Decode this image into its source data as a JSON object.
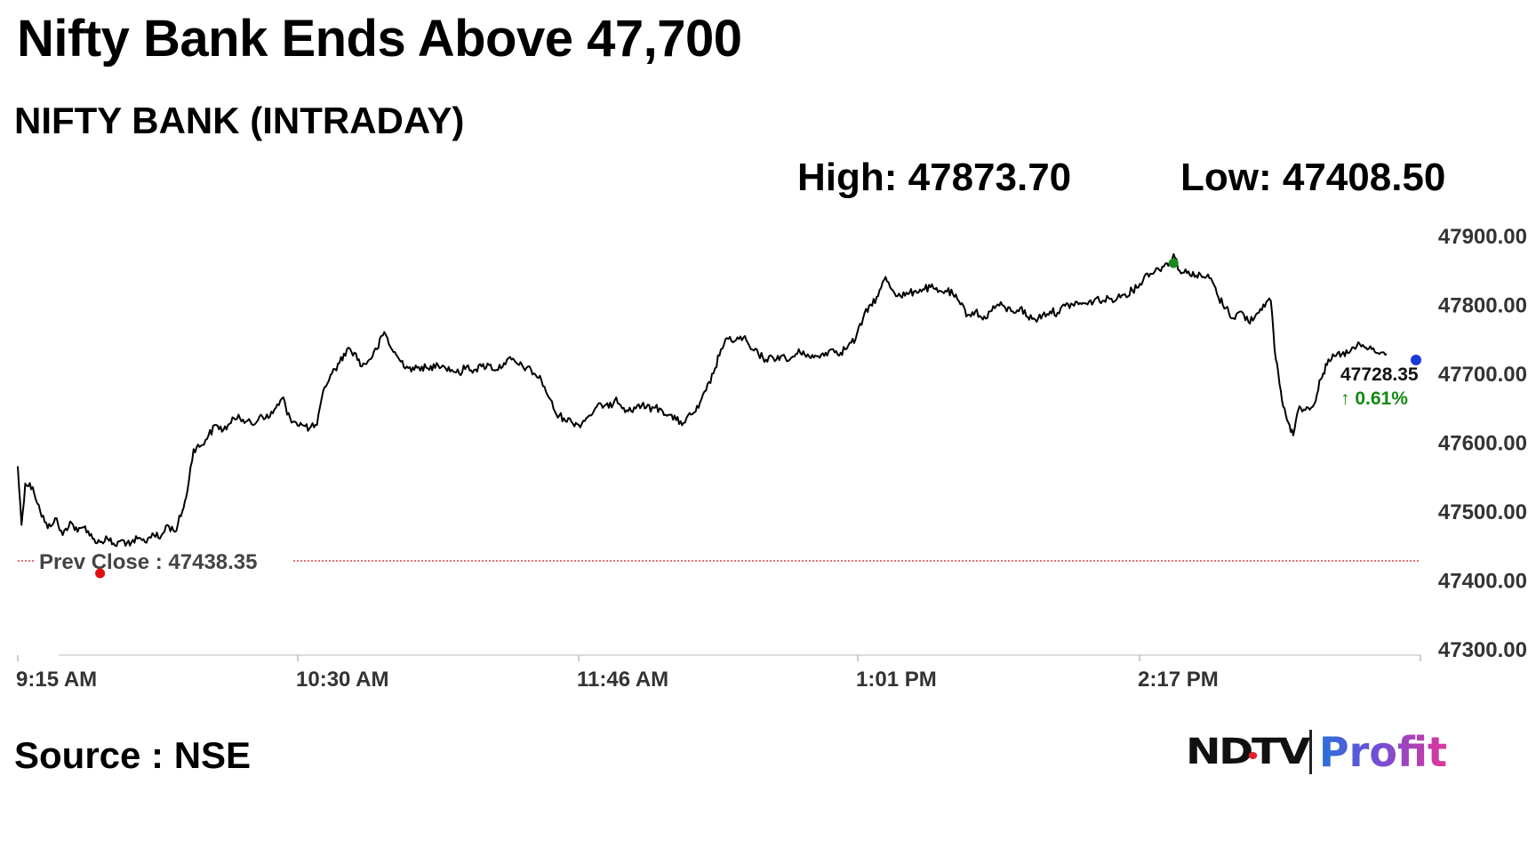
{
  "headline": "Nifty Bank Ends Above 47,700",
  "subtitle": "NIFTY BANK (INTRADAY)",
  "stats": {
    "high": "High: 47873.70",
    "low": "Low: 47408.50"
  },
  "source": "Source : NSE",
  "logo": {
    "ndtv": "NDTV",
    "profit": "Profit"
  },
  "colors": {
    "line": "#000000",
    "prev_close": "#cc2222",
    "high_marker": "#1a8a1a",
    "low_marker": "#e01010",
    "last_marker": "#1a3ad6",
    "change_up": "#128a12"
  },
  "chart_data": {
    "type": "line",
    "title": "NIFTY BANK (INTRADAY)",
    "xlabel": "",
    "ylabel": "",
    "x_ticks": [
      "9:15 AM",
      "10:30 AM",
      "11:46 AM",
      "1:01 PM",
      "2:17 PM"
    ],
    "x_range": [
      "9:15",
      "15:30"
    ],
    "y_ticks": [
      "47300.00",
      "47400.00",
      "47500.00",
      "47600.00",
      "47700.00",
      "47800.00",
      "47900.00"
    ],
    "ylim": [
      47300,
      47900
    ],
    "grid": false,
    "prev_close": {
      "label": "Prev Close : 47438.35",
      "value": 47438.35
    },
    "last": {
      "value": "47728.35",
      "change": "↑ 0.61%"
    },
    "high": {
      "time": "14:24",
      "value": 47873.7
    },
    "low": {
      "time": "9:37",
      "value": 47408.5
    },
    "series": [
      {
        "points": [
          [
            "9:15",
            47565
          ],
          [
            "9:16",
            47480
          ],
          [
            "9:17",
            47540
          ],
          [
            "9:19",
            47535
          ],
          [
            "9:21",
            47500
          ],
          [
            "9:23",
            47475
          ],
          [
            "9:25",
            47490
          ],
          [
            "9:27",
            47465
          ],
          [
            "9:29",
            47485
          ],
          [
            "9:31",
            47470
          ],
          [
            "9:33",
            47478
          ],
          [
            "9:35",
            47460
          ],
          [
            "9:37",
            47455
          ],
          [
            "9:39",
            47460
          ],
          [
            "9:41",
            47450
          ],
          [
            "9:43",
            47458
          ],
          [
            "9:45",
            47450
          ],
          [
            "9:47",
            47460
          ],
          [
            "9:49",
            47455
          ],
          [
            "9:51",
            47468
          ],
          [
            "9:53",
            47460
          ],
          [
            "9:55",
            47480
          ],
          [
            "9:57",
            47470
          ],
          [
            "9:59",
            47500
          ],
          [
            "10:00",
            47520
          ],
          [
            "10:02",
            47590
          ],
          [
            "10:04",
            47595
          ],
          [
            "10:06",
            47610
          ],
          [
            "10:08",
            47625
          ],
          [
            "10:10",
            47618
          ],
          [
            "10:12",
            47628
          ],
          [
            "10:14",
            47640
          ],
          [
            "10:16",
            47630
          ],
          [
            "10:18",
            47625
          ],
          [
            "10:20",
            47640
          ],
          [
            "10:22",
            47635
          ],
          [
            "10:24",
            47650
          ],
          [
            "10:26",
            47665
          ],
          [
            "10:27",
            47640
          ],
          [
            "10:29",
            47630
          ],
          [
            "10:31",
            47625
          ],
          [
            "10:33",
            47620
          ],
          [
            "10:35",
            47625
          ],
          [
            "10:37",
            47680
          ],
          [
            "10:39",
            47700
          ],
          [
            "10:41",
            47715
          ],
          [
            "10:43",
            47735
          ],
          [
            "10:45",
            47730
          ],
          [
            "10:47",
            47710
          ],
          [
            "10:49",
            47720
          ],
          [
            "10:51",
            47735
          ],
          [
            "10:53",
            47760
          ],
          [
            "10:55",
            47735
          ],
          [
            "10:57",
            47720
          ],
          [
            "10:59",
            47710
          ],
          [
            "11:01",
            47705
          ],
          [
            "11:03",
            47710
          ],
          [
            "11:05",
            47705
          ],
          [
            "11:07",
            47715
          ],
          [
            "11:09",
            47710
          ],
          [
            "11:11",
            47705
          ],
          [
            "11:13",
            47700
          ],
          [
            "11:15",
            47710
          ],
          [
            "11:17",
            47705
          ],
          [
            "11:19",
            47710
          ],
          [
            "11:21",
            47712
          ],
          [
            "11:23",
            47705
          ],
          [
            "11:25",
            47715
          ],
          [
            "11:27",
            47720
          ],
          [
            "11:29",
            47712
          ],
          [
            "11:31",
            47708
          ],
          [
            "11:33",
            47700
          ],
          [
            "11:35",
            47690
          ],
          [
            "11:37",
            47665
          ],
          [
            "11:39",
            47640
          ],
          [
            "11:41",
            47635
          ],
          [
            "11:43",
            47630
          ],
          [
            "11:45",
            47625
          ],
          [
            "11:47",
            47635
          ],
          [
            "11:49",
            47645
          ],
          [
            "11:51",
            47655
          ],
          [
            "11:53",
            47650
          ],
          [
            "11:55",
            47665
          ],
          [
            "11:57",
            47650
          ],
          [
            "11:59",
            47645
          ],
          [
            "12:01",
            47655
          ],
          [
            "12:03",
            47650
          ],
          [
            "12:05",
            47650
          ],
          [
            "12:07",
            47648
          ],
          [
            "12:09",
            47640
          ],
          [
            "12:11",
            47632
          ],
          [
            "12:13",
            47628
          ],
          [
            "12:15",
            47640
          ],
          [
            "12:17",
            47650
          ],
          [
            "12:19",
            47675
          ],
          [
            "12:21",
            47700
          ],
          [
            "12:23",
            47735
          ],
          [
            "12:25",
            47750
          ],
          [
            "12:27",
            47748
          ],
          [
            "12:29",
            47752
          ],
          [
            "12:31",
            47735
          ],
          [
            "12:33",
            47728
          ],
          [
            "12:35",
            47720
          ],
          [
            "12:37",
            47722
          ],
          [
            "12:39",
            47725
          ],
          [
            "12:41",
            47718
          ],
          [
            "12:43",
            47728
          ],
          [
            "12:45",
            47732
          ],
          [
            "12:47",
            47722
          ],
          [
            "12:49",
            47725
          ],
          [
            "12:51",
            47730
          ],
          [
            "12:53",
            47735
          ],
          [
            "12:55",
            47730
          ],
          [
            "12:57",
            47740
          ],
          [
            "12:59",
            47750
          ],
          [
            "13:01",
            47780
          ],
          [
            "13:03",
            47800
          ],
          [
            "13:05",
            47812
          ],
          [
            "13:07",
            47840
          ],
          [
            "13:09",
            47820
          ],
          [
            "13:11",
            47812
          ],
          [
            "13:13",
            47815
          ],
          [
            "13:15",
            47820
          ],
          [
            "13:17",
            47822
          ],
          [
            "13:19",
            47825
          ],
          [
            "13:21",
            47818
          ],
          [
            "13:23",
            47820
          ],
          [
            "13:25",
            47815
          ],
          [
            "13:27",
            47800
          ],
          [
            "13:29",
            47785
          ],
          [
            "13:31",
            47790
          ],
          [
            "13:33",
            47778
          ],
          [
            "13:35",
            47790
          ],
          [
            "13:37",
            47800
          ],
          [
            "13:39",
            47795
          ],
          [
            "13:41",
            47790
          ],
          [
            "13:43",
            47795
          ],
          [
            "13:45",
            47782
          ],
          [
            "13:47",
            47778
          ],
          [
            "13:49",
            47785
          ],
          [
            "13:51",
            47790
          ],
          [
            "13:53",
            47788
          ],
          [
            "13:55",
            47798
          ],
          [
            "13:57",
            47800
          ],
          [
            "13:59",
            47802
          ],
          [
            "14:01",
            47800
          ],
          [
            "14:03",
            47808
          ],
          [
            "14:05",
            47805
          ],
          [
            "14:07",
            47808
          ],
          [
            "14:09",
            47810
          ],
          [
            "14:11",
            47815
          ],
          [
            "14:13",
            47820
          ],
          [
            "14:15",
            47830
          ],
          [
            "14:17",
            47845
          ],
          [
            "14:19",
            47848
          ],
          [
            "14:21",
            47855
          ],
          [
            "14:23",
            47862
          ],
          [
            "14:24",
            47873
          ],
          [
            "14:26",
            47845
          ],
          [
            "14:28",
            47848
          ],
          [
            "14:30",
            47842
          ],
          [
            "14:32",
            47840
          ],
          [
            "14:34",
            47838
          ],
          [
            "14:36",
            47810
          ],
          [
            "14:38",
            47795
          ],
          [
            "14:40",
            47780
          ],
          [
            "14:42",
            47790
          ],
          [
            "14:44",
            47775
          ],
          [
            "14:46",
            47785
          ],
          [
            "14:48",
            47800
          ],
          [
            "14:50",
            47805
          ],
          [
            "14:51",
            47735
          ],
          [
            "14:52",
            47700
          ],
          [
            "14:53",
            47660
          ],
          [
            "14:54",
            47640
          ],
          [
            "14:55",
            47625
          ],
          [
            "14:56",
            47610
          ],
          [
            "14:57",
            47640
          ],
          [
            "14:58",
            47650
          ],
          [
            "15:00",
            47650
          ],
          [
            "15:02",
            47660
          ],
          [
            "15:03",
            47690
          ],
          [
            "15:04",
            47700
          ],
          [
            "15:05",
            47712
          ],
          [
            "15:07",
            47725
          ],
          [
            "15:09",
            47728
          ],
          [
            "15:11",
            47730
          ],
          [
            "15:13",
            47740
          ],
          [
            "15:15",
            47738
          ],
          [
            "15:17",
            47735
          ],
          [
            "15:19",
            47728
          ],
          [
            "15:21",
            47728
          ]
        ]
      }
    ]
  }
}
